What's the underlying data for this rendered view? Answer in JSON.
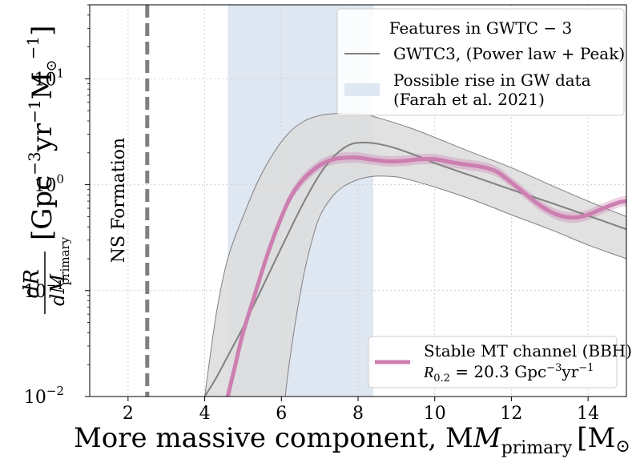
{
  "chart_data": {
    "type": "line",
    "x": {
      "label": "More massive component,  M",
      "label_sub": "primary",
      "label_unit": "[M",
      "label_unit_end": "]",
      "range": [
        1,
        15
      ],
      "ticks": [
        2,
        4,
        6,
        8,
        10,
        12,
        14
      ]
    },
    "y": {
      "scale": "log",
      "range": [
        0.01,
        50
      ],
      "ticks": [
        0.01,
        0.1,
        1,
        10
      ],
      "tick_labels": [
        {
          "base": "10",
          "exp": "−2"
        },
        {
          "base": "10",
          "exp": "−1"
        },
        {
          "base": "10",
          "exp": "0"
        },
        {
          "base": "10",
          "exp": "1"
        }
      ],
      "label_num": "dR",
      "label_den": "dM",
      "label_den_sub": "primary",
      "label_unit": "[Gpc",
      "label_unit_exp1": "−3",
      "label_unit_mid": "yr",
      "label_unit_exp2": "−1",
      "label_unit_end": "M",
      "label_unit_exp3": "−1",
      "label_unit_close": "]"
    },
    "grid": true,
    "ns_line": {
      "x": 2.5,
      "label": "NS Formation",
      "color": "#808080"
    },
    "rise_region": {
      "x_start": 4.6,
      "x_end": 8.4,
      "color": "#dfe7f2"
    },
    "legend_top": {
      "title": "Features in GWTC − 3",
      "entries": [
        {
          "label": "GWTC3,  (Power law  +  Peak)",
          "color": "#808080"
        },
        {
          "label_line1": "Possible rise in GW data",
          "label_line2": "(Farah et al. 2021)",
          "color": "#dfe7f2"
        }
      ],
      "placement": "top-right"
    },
    "legend_bottom": {
      "entries": [
        {
          "label_line1": "Stable MT channel (BBH)",
          "label_line2_prefix": "R",
          "label_line2_sub": "0.2",
          "label_line2_mid": " = 20.3 Gpc",
          "label_line2_exp1": "−3",
          "label_line2_yr": "yr",
          "label_line2_exp2": "−1",
          "color": "#cc7fb0"
        }
      ],
      "placement": "bottom-right"
    },
    "series": [
      {
        "name": "GWTC3,  (Power law  +  Peak)",
        "kind": "median",
        "color": "#808080",
        "x": [
          4.0,
          4.3,
          4.6,
          5.0,
          5.4,
          5.8,
          6.2,
          6.6,
          7.0,
          7.4,
          7.8,
          8.2,
          8.6,
          9.0,
          9.5,
          10,
          11,
          12,
          13,
          14,
          15
        ],
        "y": [
          0.01,
          0.015,
          0.024,
          0.045,
          0.09,
          0.18,
          0.36,
          0.7,
          1.25,
          1.9,
          2.4,
          2.5,
          2.4,
          2.2,
          1.9,
          1.6,
          1.2,
          0.9,
          0.68,
          0.51,
          0.38
        ],
        "band_upper": [
          0.01,
          0.06,
          0.2,
          0.5,
          1.1,
          2.0,
          3.1,
          4.0,
          4.5,
          4.7,
          4.7,
          4.6,
          4.2,
          3.8,
          3.3,
          2.8,
          2.0,
          1.45,
          1.0,
          0.7,
          0.5
        ],
        "band_lower_x": [
          6.1,
          6.2,
          6.4,
          6.6,
          6.8,
          7.0,
          7.3,
          7.6,
          8.0,
          8.4,
          8.8,
          9.2,
          10,
          11,
          12,
          13,
          14,
          15
        ],
        "band_lower": [
          0.01,
          0.02,
          0.06,
          0.15,
          0.3,
          0.5,
          0.75,
          0.95,
          1.12,
          1.2,
          1.2,
          1.15,
          0.95,
          0.72,
          0.52,
          0.38,
          0.27,
          0.2
        ]
      },
      {
        "name": "Stable MT channel (BBH)",
        "kind": "model",
        "color": "#cc7fb0",
        "x": [
          4.6,
          4.8,
          5.0,
          5.3,
          5.6,
          5.9,
          6.2,
          6.5,
          6.8,
          7.1,
          7.4,
          7.7,
          8.0,
          8.4,
          8.8,
          9.2,
          9.6,
          10.0,
          10.4,
          10.8,
          11.2,
          11.6,
          12.0,
          12.4,
          12.8,
          13.2,
          13.6,
          14.0,
          14.4,
          14.8,
          15.0
        ],
        "y": [
          0.01,
          0.02,
          0.04,
          0.09,
          0.2,
          0.4,
          0.72,
          1.05,
          1.35,
          1.6,
          1.75,
          1.8,
          1.8,
          1.72,
          1.66,
          1.68,
          1.74,
          1.74,
          1.64,
          1.55,
          1.48,
          1.34,
          1.05,
          0.8,
          0.62,
          0.52,
          0.49,
          0.52,
          0.6,
          0.68,
          0.7
        ]
      }
    ]
  }
}
